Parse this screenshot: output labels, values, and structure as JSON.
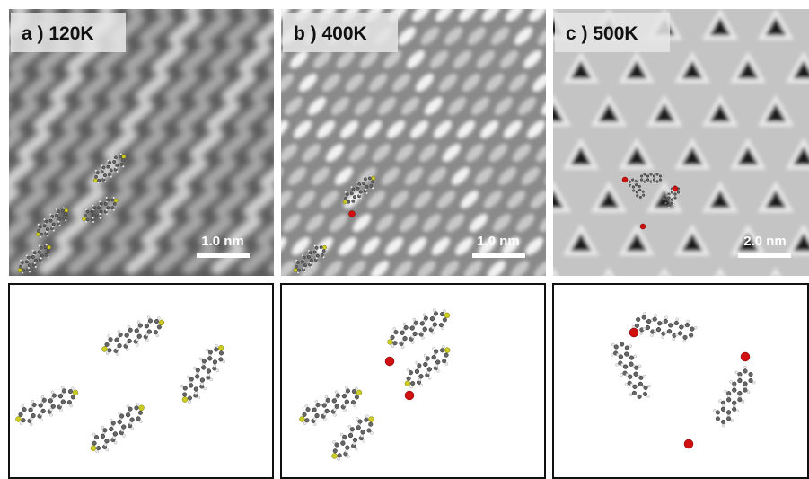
{
  "panels": [
    {
      "label": "a ) 120K",
      "scale_bar": "1.0 nm"
    },
    {
      "label": "b ) 400K",
      "scale_bar": "1.0 nm"
    },
    {
      "label": "c ) 500K",
      "scale_bar": "2.0 nm"
    }
  ]
}
